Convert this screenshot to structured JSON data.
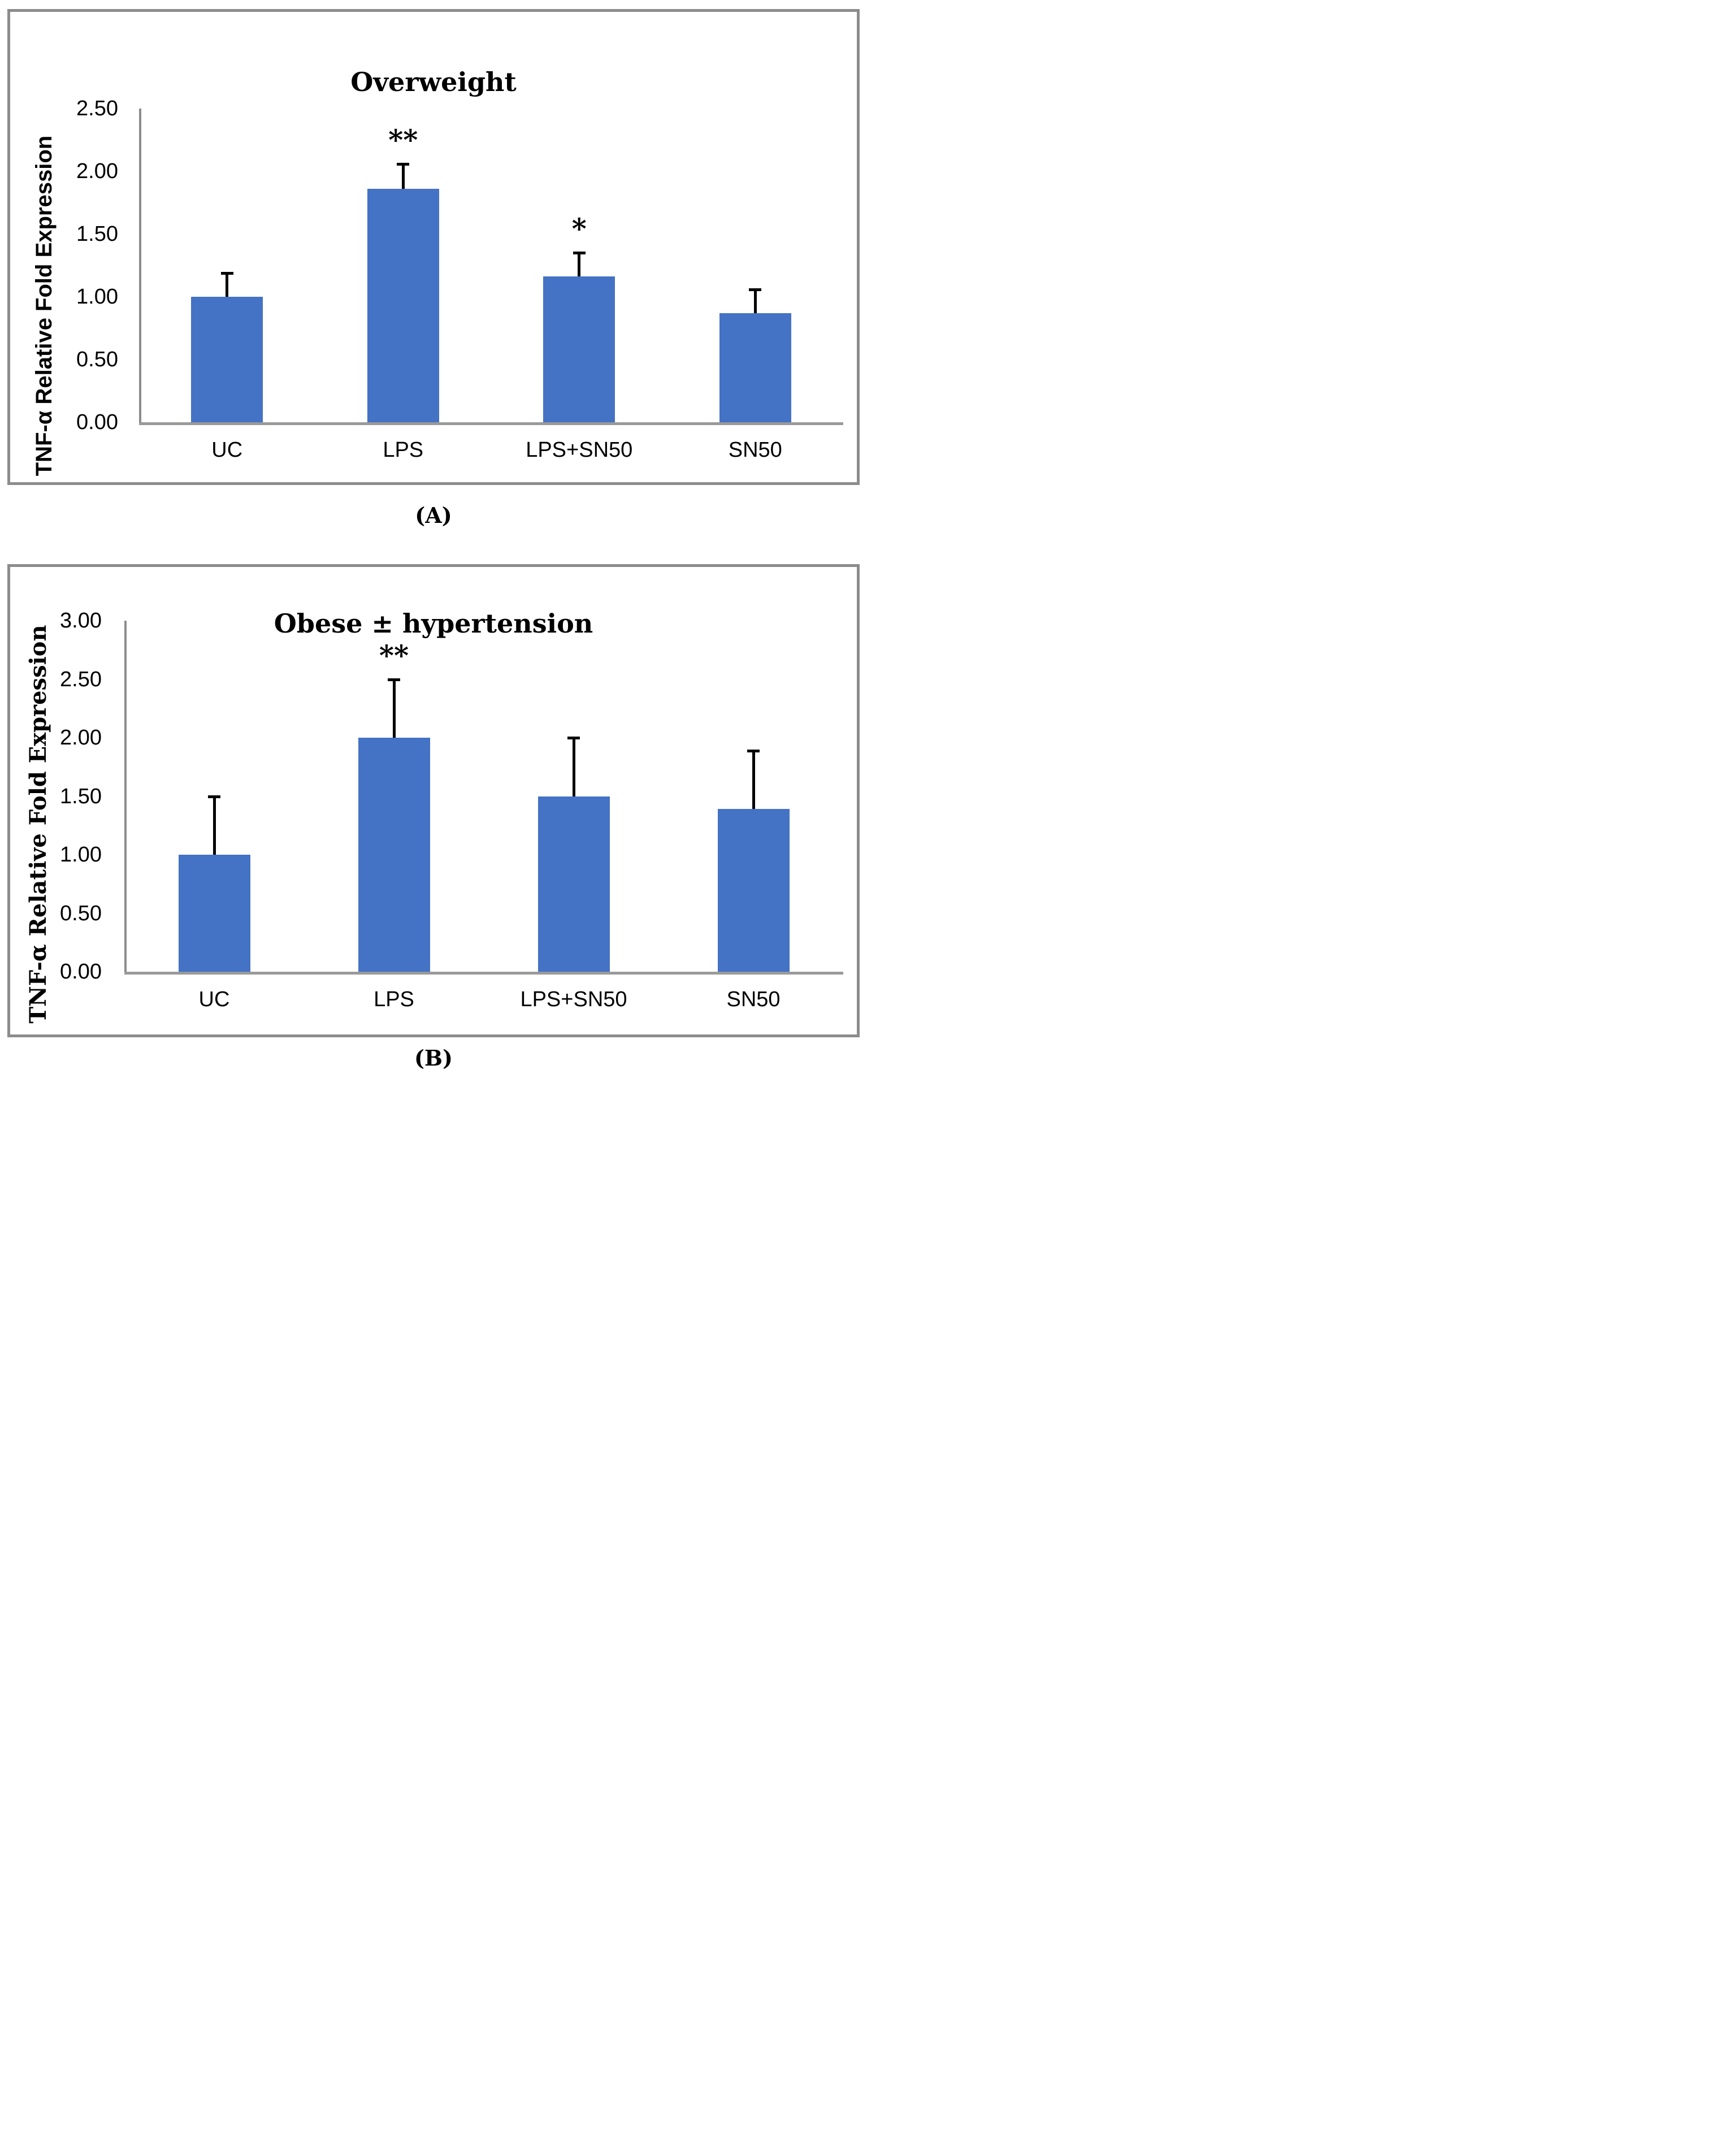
{
  "figure": {
    "description": "Two-panel bar chart figure of TNF-α relative fold expression",
    "captions": {
      "a": "(A)",
      "b": "(B)"
    }
  },
  "colors": {
    "bar_fill": "#4472C4",
    "panel_border": "#8c8c8c",
    "axis_line": "#9a9a9a",
    "error_bar": "#000000",
    "text": "#000000"
  },
  "chart_data": [
    {
      "type": "bar",
      "panel": "A",
      "title": "Overweight",
      "xlabel": "",
      "ylabel": "TNF-α Relative Fold Expression",
      "categories": [
        "UC",
        "LPS",
        "LPS+SN50",
        "SN50"
      ],
      "values": [
        1.0,
        1.86,
        1.16,
        0.87
      ],
      "error_caps": [
        1.19,
        2.06,
        1.35,
        1.06
      ],
      "significance": [
        "",
        "**",
        "*",
        ""
      ],
      "ylim": [
        0,
        2.5
      ],
      "yticks": [
        "2.50",
        "2.00",
        "1.50",
        "1.00",
        "0.50",
        "0.00"
      ],
      "grid": false,
      "legend_position": "none",
      "bar_color": "#4472C4"
    },
    {
      "type": "bar",
      "panel": "B",
      "title": "Obese ± hypertension",
      "xlabel": "",
      "ylabel": "TNF-α Relative Fold Expression",
      "categories": [
        "UC",
        "LPS",
        "LPS+SN50",
        "SN50"
      ],
      "values": [
        1.0,
        2.0,
        1.5,
        1.39
      ],
      "error_caps": [
        1.5,
        2.5,
        2.0,
        1.89
      ],
      "significance": [
        "",
        "**",
        "",
        ""
      ],
      "ylim": [
        0,
        3.0
      ],
      "yticks": [
        "3.00",
        "2.50",
        "2.00",
        "1.50",
        "1.00",
        "0.50",
        "0.00"
      ],
      "grid": false,
      "legend_position": "none",
      "bar_color": "#4472C4"
    }
  ]
}
